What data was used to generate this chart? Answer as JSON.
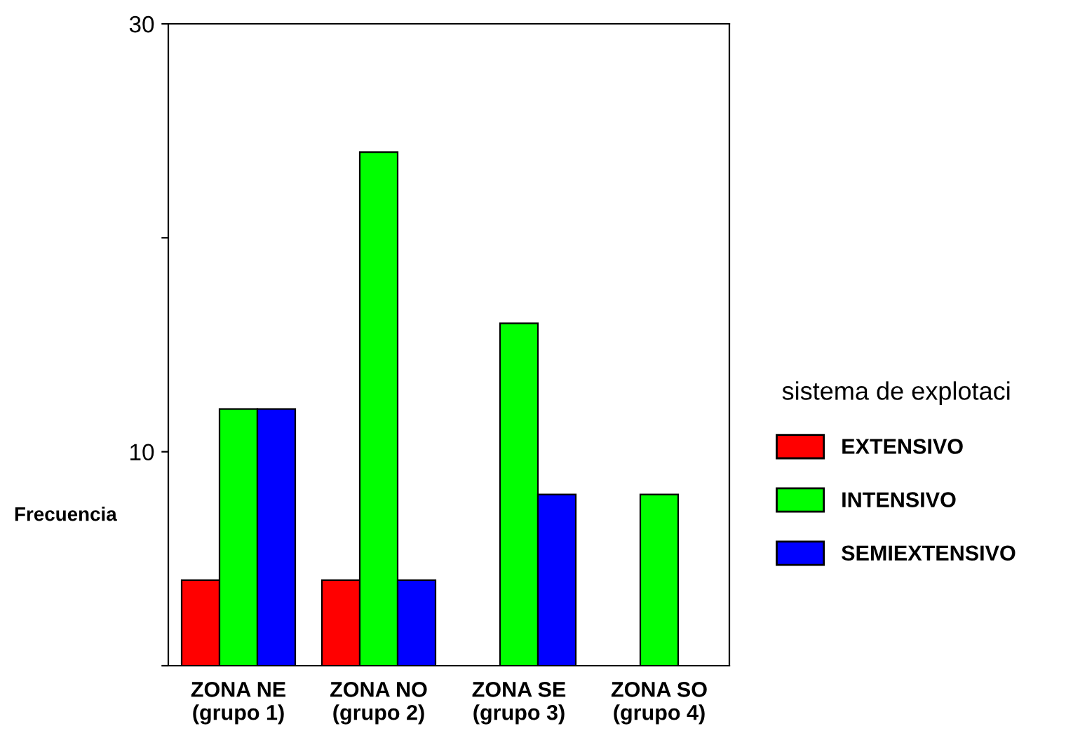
{
  "chart_data": {
    "type": "bar",
    "ylabel": "Frecuencia",
    "legend_title": "sistema de explotaci",
    "categories": [
      "ZONA NE\n(grupo 1)",
      "ZONA NO\n(grupo 2)",
      "ZONA SE\n(grupo 3)",
      "ZONA SO\n(grupo 4)"
    ],
    "series": [
      {
        "name": "EXTENSIVO",
        "color": "#ff0000",
        "values": [
          4,
          4,
          0,
          0
        ]
      },
      {
        "name": "INTENSIVO",
        "color": "#00ff00",
        "values": [
          12,
          24,
          16,
          8
        ]
      },
      {
        "name": "SEMIEXTENSIVO",
        "color": "#0000ff",
        "values": [
          12,
          4,
          8,
          0
        ]
      }
    ],
    "ylim": [
      0,
      30
    ],
    "yticks": [
      {
        "value": 0,
        "label": null
      },
      10,
      {
        "value": 20,
        "label": null
      },
      30
    ],
    "grid": false,
    "legend": "right"
  }
}
